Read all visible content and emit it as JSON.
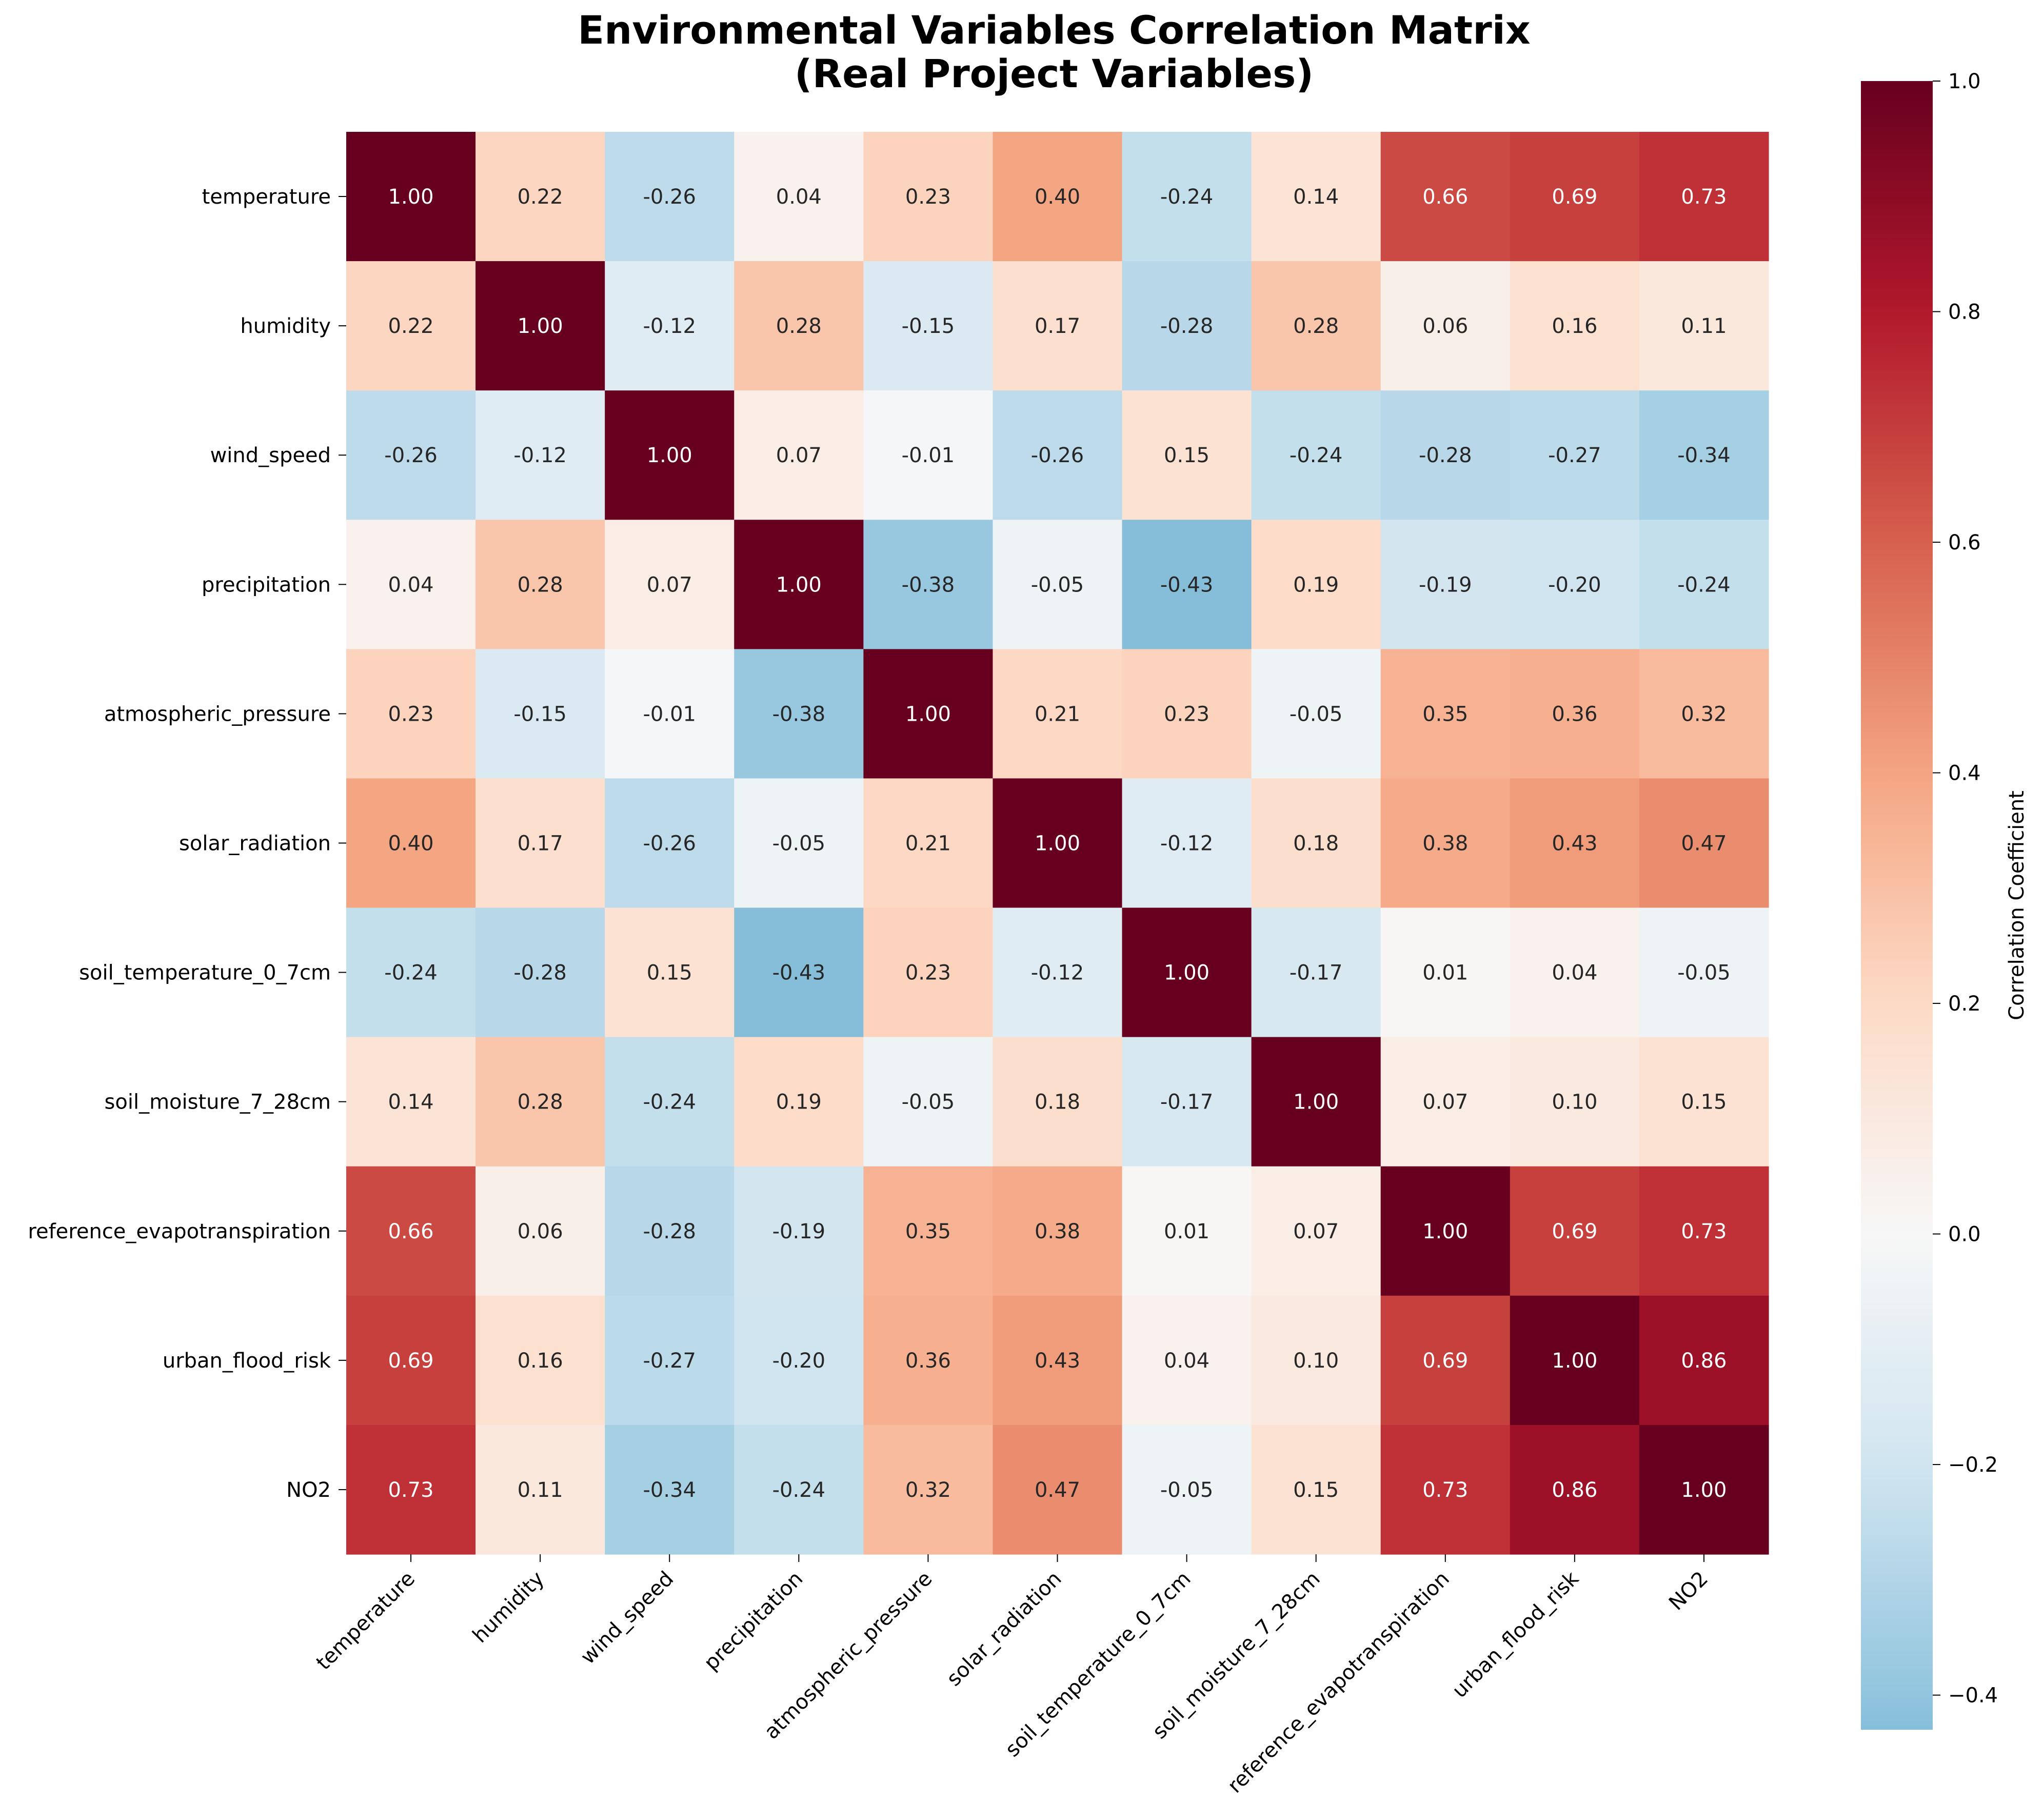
{
  "chart_data": {
    "type": "heatmap",
    "title_lines": [
      "Environmental Variables Correlation Matrix",
      "(Real Project Variables)"
    ],
    "variables": [
      "temperature",
      "humidity",
      "wind_speed",
      "precipitation",
      "atmospheric_pressure",
      "solar_radiation",
      "soil_temperature_0_7cm",
      "soil_moisture_7_28cm",
      "reference_evapotranspiration",
      "urban_flood_risk",
      "NO2"
    ],
    "values": [
      [
        1.0,
        0.22,
        -0.26,
        0.04,
        0.23,
        0.4,
        -0.24,
        0.14,
        0.66,
        0.69,
        0.73
      ],
      [
        0.22,
        1.0,
        -0.12,
        0.28,
        -0.15,
        0.17,
        -0.28,
        0.28,
        0.06,
        0.16,
        0.11
      ],
      [
        -0.26,
        -0.12,
        1.0,
        0.07,
        -0.01,
        -0.26,
        0.15,
        -0.24,
        -0.28,
        -0.27,
        -0.34
      ],
      [
        0.04,
        0.28,
        0.07,
        1.0,
        -0.38,
        -0.05,
        -0.43,
        0.19,
        -0.19,
        -0.2,
        -0.24
      ],
      [
        0.23,
        -0.15,
        -0.01,
        -0.38,
        1.0,
        0.21,
        0.23,
        -0.05,
        0.35,
        0.36,
        0.32
      ],
      [
        0.4,
        0.17,
        -0.26,
        -0.05,
        0.21,
        1.0,
        -0.12,
        0.18,
        0.38,
        0.43,
        0.47
      ],
      [
        -0.24,
        -0.28,
        0.15,
        -0.43,
        0.23,
        -0.12,
        1.0,
        -0.17,
        0.01,
        0.04,
        -0.05
      ],
      [
        0.14,
        0.28,
        -0.24,
        0.19,
        -0.05,
        0.18,
        -0.17,
        1.0,
        0.07,
        0.1,
        0.15
      ],
      [
        0.66,
        0.06,
        -0.28,
        -0.19,
        0.35,
        0.38,
        0.01,
        0.07,
        1.0,
        0.69,
        0.73
      ],
      [
        0.69,
        0.16,
        -0.27,
        -0.2,
        0.36,
        0.43,
        0.04,
        0.1,
        0.69,
        1.0,
        0.86
      ],
      [
        0.73,
        0.11,
        -0.34,
        -0.24,
        0.32,
        0.47,
        -0.05,
        0.15,
        0.73,
        0.86,
        1.0
      ]
    ],
    "colormap": "RdBu_r",
    "color_range": [
      -0.43,
      1.0
    ],
    "colorbar": {
      "label": "Correlation Coefficient",
      "ticks": [
        "1.0",
        "0.8",
        "0.6",
        "0.4",
        "0.2",
        "0.0",
        "−0.2",
        "−0.4"
      ],
      "tick_values": [
        1.0,
        0.8,
        0.6,
        0.4,
        0.2,
        0.0,
        -0.2,
        -0.4
      ]
    },
    "annotation_format": "2 decimals",
    "xtick_rotation": "45 degrees",
    "grid": false
  }
}
